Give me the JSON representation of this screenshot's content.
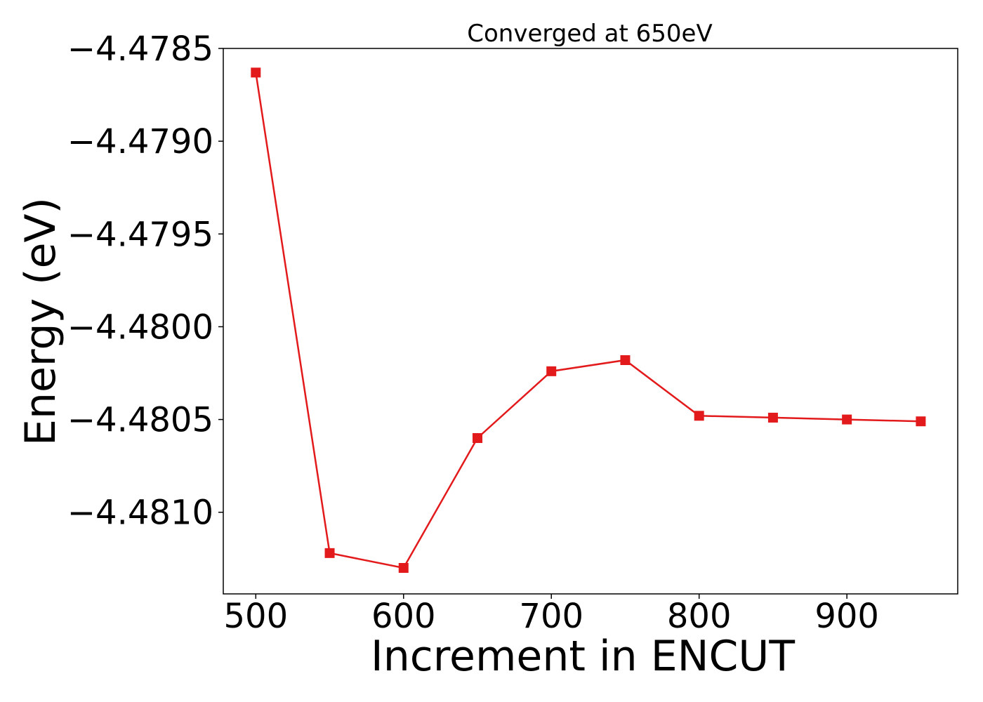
{
  "chart_data": {
    "type": "line",
    "title": "Converged at 650eV",
    "xlabel": "Increment in ENCUT",
    "ylabel": "Energy (eV)",
    "x": [
      500,
      550,
      600,
      650,
      700,
      750,
      800,
      850,
      900,
      950
    ],
    "series": [
      {
        "values": [
          -4.47863,
          -4.48122,
          -4.4813,
          -4.4806,
          -4.48024,
          -4.48018,
          -4.48048,
          -4.48049,
          -4.4805,
          -4.48051
        ],
        "color": "#e31a1c",
        "marker": "square"
      }
    ],
    "xlim": [
      478,
      975
    ],
    "ylim": [
      -4.48144,
      -4.4785
    ],
    "xticks": [
      500,
      600,
      700,
      800,
      900
    ],
    "xtick_labels": [
      "500",
      "600",
      "700",
      "800",
      "900"
    ],
    "yticks": [
      -4.4785,
      -4.479,
      -4.4795,
      -4.48,
      -4.4805,
      -4.481
    ],
    "ytick_labels": [
      "−4.4785",
      "−4.4790",
      "−4.4795",
      "−4.4800",
      "−4.4805",
      "−4.4810"
    ],
    "grid": false,
    "legend": "none"
  }
}
